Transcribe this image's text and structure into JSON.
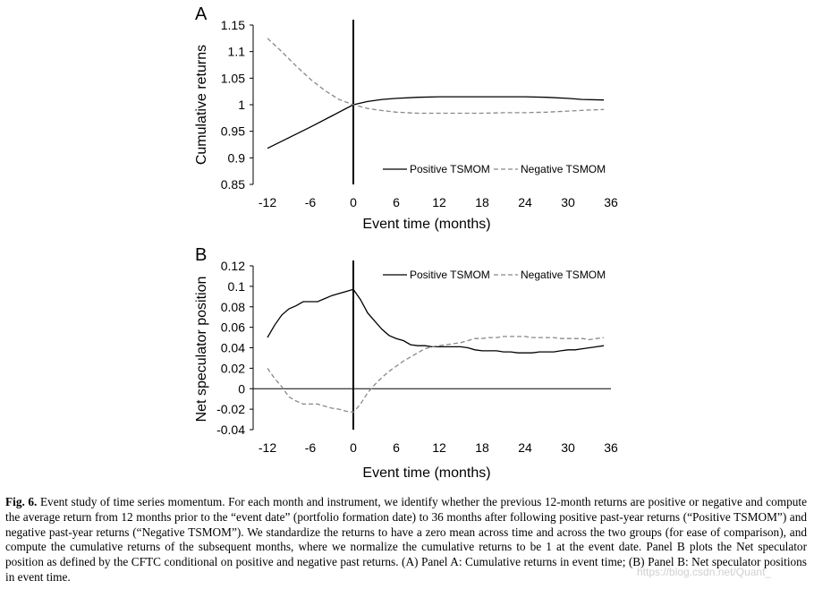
{
  "chart_data": [
    {
      "type": "line",
      "panel_label": "A",
      "xlabel": "Event time (months)",
      "ylabel": "Cumulative returns",
      "xlim": [
        -14,
        36
      ],
      "ylim": [
        0.85,
        1.15
      ],
      "x_ticks": [
        -12,
        -6,
        0,
        6,
        12,
        18,
        24,
        30,
        36
      ],
      "x_tick_labels": [
        "-12",
        "-6",
        "0",
        "6",
        "12",
        "18",
        "24",
        "30",
        "36"
      ],
      "y_ticks": [
        0.85,
        0.9,
        0.95,
        1,
        1.05,
        1.1,
        1.15
      ],
      "y_tick_labels": [
        "0.85",
        "0.9",
        "0.95",
        "1",
        "1.05",
        "1.1",
        "1.15"
      ],
      "event_line_x": 0,
      "zero_line": false,
      "grid": false,
      "legend": "bottom-right",
      "series": [
        {
          "name": "Positive TSMOM",
          "style": "solid",
          "color": "#000000",
          "x": [
            -12,
            -9,
            -6,
            -3,
            0,
            2,
            4,
            6,
            9,
            12,
            15,
            18,
            21,
            24,
            27,
            30,
            32,
            35
          ],
          "y": [
            0.918,
            0.938,
            0.958,
            0.979,
            1.0,
            1.006,
            1.01,
            1.012,
            1.014,
            1.015,
            1.015,
            1.015,
            1.015,
            1.015,
            1.014,
            1.012,
            1.01,
            1.009
          ]
        },
        {
          "name": "Negative TSMOM",
          "style": "dashed",
          "color": "#888888",
          "x": [
            -12,
            -10,
            -8,
            -6,
            -4,
            -2,
            0,
            2,
            4,
            6,
            9,
            12,
            15,
            18,
            21,
            24,
            27,
            30,
            33,
            35
          ],
          "y": [
            1.125,
            1.1,
            1.073,
            1.048,
            1.027,
            1.01,
            1.0,
            0.993,
            0.989,
            0.986,
            0.984,
            0.984,
            0.984,
            0.984,
            0.985,
            0.985,
            0.986,
            0.988,
            0.99,
            0.991
          ]
        }
      ]
    },
    {
      "type": "line",
      "panel_label": "B",
      "xlabel": "Event time (months)",
      "ylabel": "Net speculator position",
      "xlim": [
        -14,
        36
      ],
      "ylim": [
        -0.04,
        0.12
      ],
      "x_ticks": [
        -12,
        -6,
        0,
        6,
        12,
        18,
        24,
        30,
        36
      ],
      "x_tick_labels": [
        "-12",
        "-6",
        "0",
        "6",
        "12",
        "18",
        "24",
        "30",
        "36"
      ],
      "y_ticks": [
        -0.04,
        -0.02,
        0,
        0.02,
        0.04,
        0.06,
        0.08,
        0.1,
        0.12
      ],
      "y_tick_labels": [
        "-0.04",
        "-0.02",
        "0",
        "0.02",
        "0.04",
        "0.06",
        "0.08",
        "0.1",
        "0.12"
      ],
      "event_line_x": 0,
      "zero_line": true,
      "grid": false,
      "legend": "top-right",
      "series": [
        {
          "name": "Positive TSMOM",
          "style": "solid",
          "color": "#000000",
          "x": [
            -12,
            -11,
            -10,
            -9,
            -8,
            -7,
            -6,
            -5,
            -4,
            -3,
            -2,
            -1,
            0,
            1,
            2,
            3,
            4,
            5,
            6,
            7,
            8,
            9,
            10,
            11,
            12,
            13,
            14,
            15,
            16,
            17,
            18,
            19,
            20,
            21,
            22,
            23,
            24,
            25,
            26,
            27,
            28,
            29,
            30,
            31,
            32,
            33,
            34,
            35
          ],
          "y": [
            0.05,
            0.062,
            0.072,
            0.078,
            0.081,
            0.085,
            0.085,
            0.085,
            0.088,
            0.091,
            0.093,
            0.095,
            0.097,
            0.087,
            0.074,
            0.066,
            0.058,
            0.052,
            0.049,
            0.047,
            0.043,
            0.042,
            0.042,
            0.041,
            0.041,
            0.041,
            0.041,
            0.041,
            0.04,
            0.038,
            0.037,
            0.037,
            0.037,
            0.036,
            0.036,
            0.035,
            0.035,
            0.035,
            0.036,
            0.036,
            0.036,
            0.037,
            0.038,
            0.038,
            0.039,
            0.04,
            0.041,
            0.042
          ]
        },
        {
          "name": "Negative TSMOM",
          "style": "dashed",
          "color": "#888888",
          "x": [
            -12,
            -11,
            -10,
            -9,
            -8,
            -7,
            -6,
            -5,
            -4,
            -3,
            -2,
            -1,
            0,
            1,
            2,
            3,
            4,
            5,
            6,
            7,
            8,
            9,
            10,
            11,
            12,
            13,
            14,
            15,
            16,
            17,
            18,
            19,
            20,
            21,
            22,
            23,
            24,
            25,
            26,
            27,
            28,
            29,
            30,
            31,
            32,
            33,
            34,
            35
          ],
          "y": [
            0.02,
            0.01,
            0.002,
            -0.008,
            -0.012,
            -0.015,
            -0.015,
            -0.015,
            -0.017,
            -0.019,
            -0.02,
            -0.022,
            -0.023,
            -0.015,
            -0.004,
            0.004,
            0.011,
            0.017,
            0.022,
            0.027,
            0.031,
            0.035,
            0.039,
            0.041,
            0.042,
            0.043,
            0.044,
            0.045,
            0.047,
            0.049,
            0.049,
            0.05,
            0.05,
            0.051,
            0.051,
            0.051,
            0.051,
            0.05,
            0.05,
            0.05,
            0.05,
            0.049,
            0.049,
            0.049,
            0.049,
            0.048,
            0.049,
            0.05
          ]
        }
      ]
    }
  ],
  "caption": {
    "lead": "Fig. 6.",
    "body": "Event study of time series momentum. For each month and instrument, we identify whether the previous 12-month returns are positive or negative and compute the average return from 12 months prior to the “event date” (portfolio formation date) to 36 months after following positive past-year returns (“Positive TSMOM”) and negative past-year returns (“Negative TSMOM”). We standardize the returns to have a zero mean across time and across the two groups (for ease of comparison), and compute the cumulative returns of the subsequent months, where we normalize the cumulative returns to be 1 at the event date. Panel B plots the Net speculator position as defined by the CFTC conditional on positive and negative past returns. (A) Panel A: Cumulative returns in event time; (B) Panel B: Net speculator positions in event time."
  },
  "watermark": "https://blog.csdn.net/Quant_"
}
